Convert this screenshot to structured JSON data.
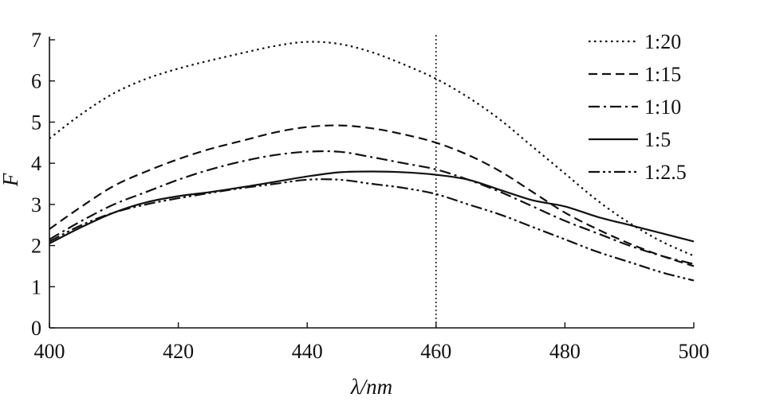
{
  "chart_data": {
    "type": "line",
    "xlabel": "λ/nm",
    "ylabel": "F",
    "xlim": [
      400,
      500
    ],
    "ylim": [
      0,
      7
    ],
    "x_ticks": [
      400,
      420,
      440,
      460,
      480,
      500
    ],
    "y_ticks": [
      0,
      1,
      2,
      3,
      4,
      5,
      6,
      7
    ],
    "x_tick_labels": [
      "400",
      "420",
      "440",
      "460",
      "480",
      "500"
    ],
    "y_tick_labels": [
      "0",
      "1",
      "2",
      "3",
      "4",
      "5",
      "6",
      "7"
    ],
    "reference_line_x": 460,
    "legend_position": "top-right",
    "grid": false,
    "x": [
      400,
      405,
      410,
      415,
      420,
      425,
      430,
      435,
      440,
      445,
      450,
      455,
      460,
      465,
      470,
      475,
      480,
      485,
      490,
      495,
      500
    ],
    "series": [
      {
        "name": "1:20",
        "dash": "dotted",
        "values": [
          4.6,
          5.2,
          5.7,
          6.05,
          6.3,
          6.5,
          6.68,
          6.85,
          6.95,
          6.9,
          6.7,
          6.4,
          6.05,
          5.6,
          5.05,
          4.4,
          3.75,
          3.1,
          2.55,
          2.1,
          1.75
        ]
      },
      {
        "name": "1:15",
        "dash": "dashed",
        "values": [
          2.4,
          2.95,
          3.45,
          3.8,
          4.1,
          4.35,
          4.55,
          4.75,
          4.88,
          4.92,
          4.85,
          4.7,
          4.5,
          4.2,
          3.8,
          3.3,
          2.8,
          2.4,
          2.05,
          1.75,
          1.5
        ]
      },
      {
        "name": "1:10",
        "dash": "dashdot",
        "values": [
          2.15,
          2.6,
          3.0,
          3.3,
          3.6,
          3.85,
          4.05,
          4.2,
          4.28,
          4.28,
          4.15,
          4.0,
          3.85,
          3.6,
          3.3,
          2.95,
          2.6,
          2.3,
          2.0,
          1.75,
          1.55
        ]
      },
      {
        "name": "1:5",
        "dash": "solid",
        "values": [
          2.05,
          2.45,
          2.8,
          3.05,
          3.2,
          3.3,
          3.42,
          3.55,
          3.68,
          3.78,
          3.8,
          3.78,
          3.72,
          3.6,
          3.35,
          3.1,
          2.95,
          2.7,
          2.5,
          2.3,
          2.1
        ]
      },
      {
        "name": "1:2.5",
        "dash": "dashdotdot",
        "values": [
          2.1,
          2.5,
          2.8,
          3.0,
          3.15,
          3.28,
          3.4,
          3.5,
          3.6,
          3.6,
          3.5,
          3.4,
          3.25,
          3.0,
          2.75,
          2.45,
          2.15,
          1.85,
          1.6,
          1.35,
          1.15
        ]
      }
    ]
  }
}
